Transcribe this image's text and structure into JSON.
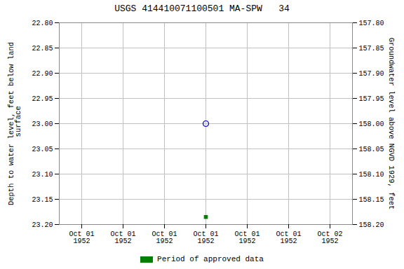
{
  "chart_data": {
    "type": "scatter",
    "title": "USGS 414410071100501 MA-SPW   34",
    "ylabel": "Depth to water level, feet below land\n surface",
    "y2label": "Groundwater level above NGVD 1929, feet",
    "categories": [
      "Oct 01\n1952",
      "Oct 01\n1952",
      "Oct 01\n1952",
      "Oct 01\n1952",
      "Oct 01\n1952",
      "Oct 01\n1952",
      "Oct 02\n1952"
    ],
    "series": [
      {
        "color": "#0000cc",
        "marker": "circle",
        "values": [
          null,
          null,
          null,
          23.0,
          null,
          null,
          null
        ]
      },
      {
        "name": "Period of approved data",
        "color": "#008000",
        "marker": "square",
        "values": [
          null,
          null,
          null,
          23.185,
          null,
          null,
          null
        ]
      }
    ],
    "ylim": [
      23.2,
      22.8
    ],
    "yticks": [
      {
        "value": 22.8,
        "label": "22.80"
      },
      22.85,
      {
        "value": 22.9,
        "label": "22.90"
      },
      22.95,
      {
        "value": 23.0,
        "label": "23.00"
      },
      23.05,
      {
        "value": 23.1,
        "label": "23.10"
      },
      23.15,
      {
        "value": 23.2,
        "label": "23.20"
      }
    ],
    "y2lim": [
      158.2,
      157.8
    ],
    "y2ticks": [
      {
        "value": 158.2,
        "label": "158.20"
      },
      158.15,
      {
        "value": 158.1,
        "label": "158.10"
      },
      158.05,
      {
        "value": 158.0,
        "label": "158.00"
      },
      157.95,
      {
        "value": 157.9,
        "label": "157.90"
      },
      157.85,
      {
        "value": 157.8,
        "label": "157.80"
      }
    ],
    "grid": true,
    "legend": "bottom"
  }
}
